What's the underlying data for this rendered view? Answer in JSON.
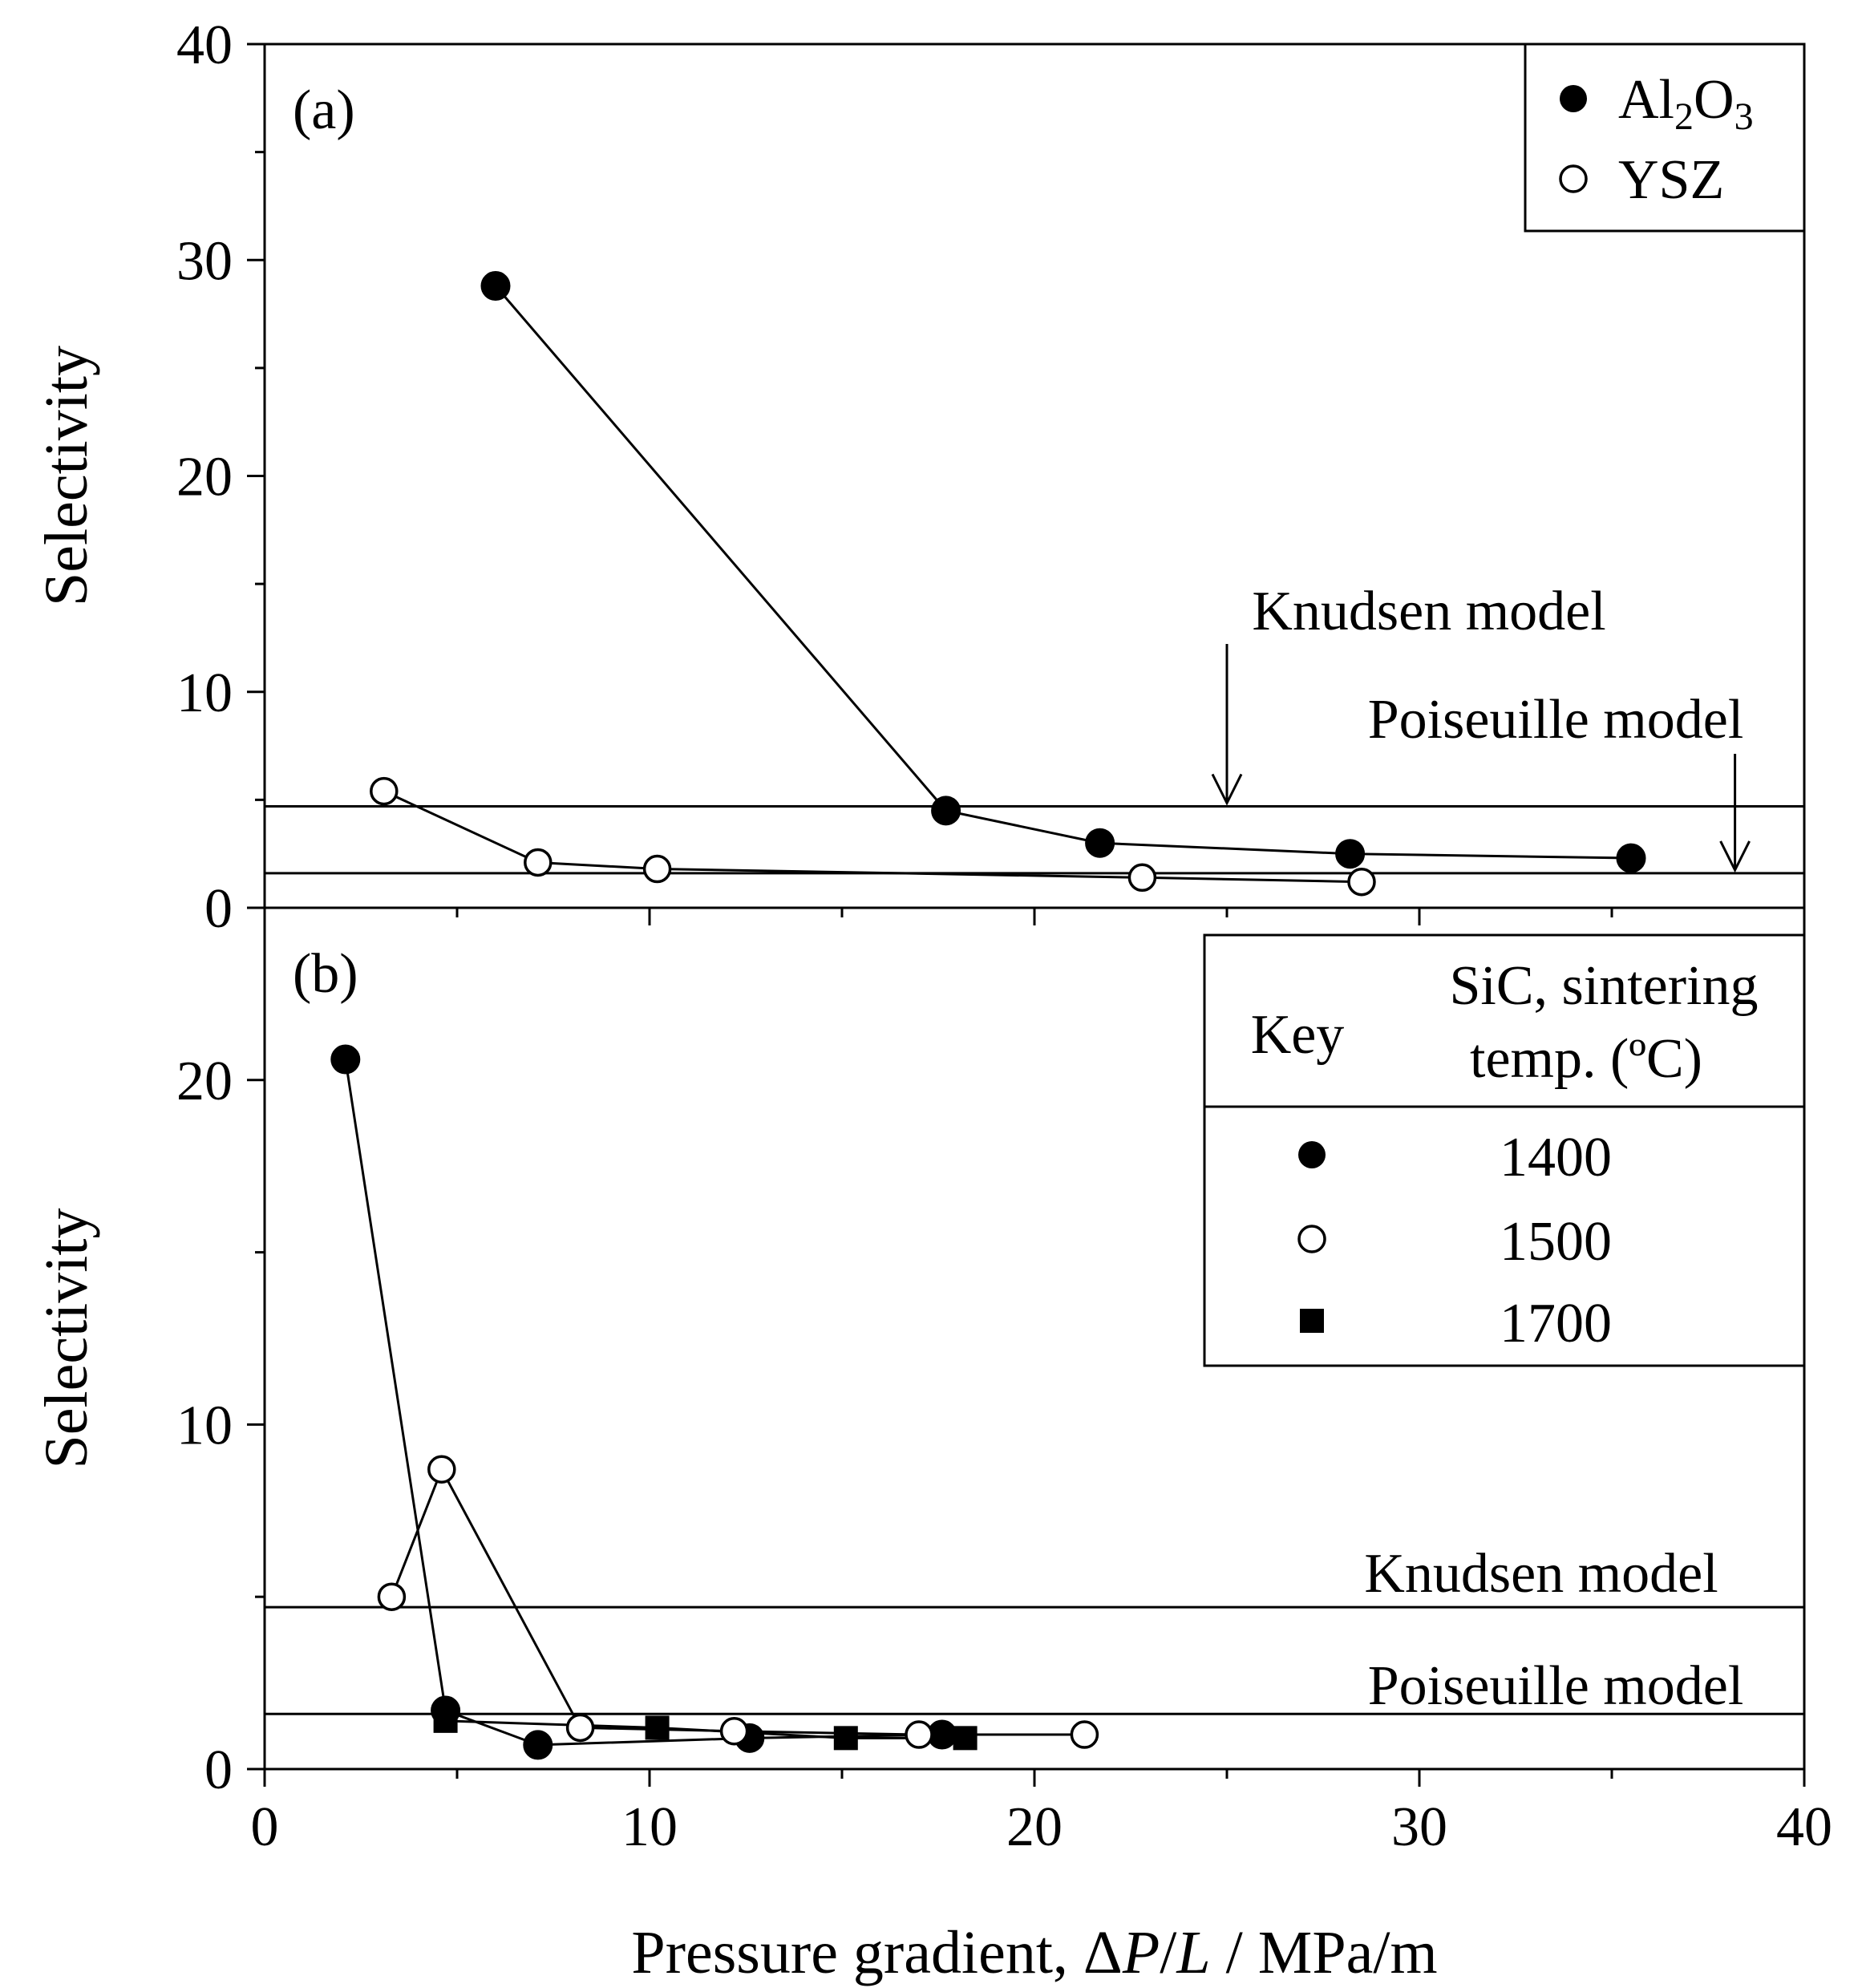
{
  "chart_data": [
    {
      "panel": "(a)",
      "type": "line",
      "xlabel": "Pressure gradient, ΔP/L / MPa/m",
      "ylabel": "Selectivity",
      "xlim": [
        0,
        40
      ],
      "ylim": [
        0,
        40
      ],
      "x_ticks": [
        0,
        10,
        20,
        30,
        40
      ],
      "y_ticks": [
        0,
        10,
        20,
        30,
        40
      ],
      "legend": {
        "position": "top-right",
        "entries": [
          "Al2O3",
          "YSZ"
        ]
      },
      "series": [
        {
          "name": "Al2O3",
          "marker": "filled-circle",
          "points": [
            [
              6.0,
              28.8
            ],
            [
              17.7,
              4.5
            ],
            [
              21.7,
              3.0
            ],
            [
              28.2,
              2.5
            ],
            [
              35.5,
              2.3
            ]
          ]
        },
        {
          "name": "YSZ",
          "marker": "open-circle",
          "points": [
            [
              3.1,
              5.4
            ],
            [
              7.1,
              2.1
            ],
            [
              10.2,
              1.8
            ],
            [
              22.8,
              1.4
            ],
            [
              28.5,
              1.2
            ]
          ]
        }
      ],
      "reference_lines": [
        {
          "label": "Knudsen model",
          "y": 4.7
        },
        {
          "label": "Poiseuille model",
          "y": 1.6
        }
      ]
    },
    {
      "panel": "(b)",
      "type": "line",
      "xlabel": "Pressure gradient, ΔP/L / MPa/m",
      "ylabel": "Selectivity",
      "xlim": [
        0,
        40
      ],
      "ylim": [
        0,
        25
      ],
      "x_ticks": [
        0,
        10,
        20,
        30,
        40
      ],
      "y_ticks": [
        0,
        10,
        20
      ],
      "legend": {
        "position": "top-right",
        "key_header": "Key",
        "header_line1": "SiC, sintering",
        "header_line2": "temp. (ºC)",
        "entries": [
          "1400",
          "1500",
          "1700"
        ]
      },
      "series": [
        {
          "name": "1400",
          "marker": "filled-circle",
          "points": [
            [
              2.1,
              20.6
            ],
            [
              4.7,
              1.7
            ],
            [
              7.1,
              0.7
            ],
            [
              12.6,
              0.9
            ],
            [
              17.6,
              1.0
            ]
          ]
        },
        {
          "name": "1500",
          "marker": "open-circle",
          "points": [
            [
              3.3,
              5.0
            ],
            [
              4.6,
              8.7
            ],
            [
              8.2,
              1.2
            ],
            [
              12.2,
              1.1
            ],
            [
              17.0,
              1.0
            ],
            [
              21.3,
              1.0
            ]
          ]
        },
        {
          "name": "1700",
          "marker": "filled-square",
          "points": [
            [
              4.7,
              1.4
            ],
            [
              10.2,
              1.2
            ],
            [
              15.1,
              0.9
            ],
            [
              18.2,
              0.9
            ]
          ]
        }
      ],
      "reference_lines": [
        {
          "label": "Knudsen model",
          "y": 4.7
        },
        {
          "label": "Poiseuille model",
          "y": 1.6
        }
      ]
    }
  ],
  "legend_a": {
    "al2o3": {
      "base": "Al",
      "sub1": "2",
      "mid": "O",
      "sub2": "3"
    },
    "ysz": "YSZ"
  },
  "axis_label_parts": {
    "prefix": "Pressure gradient, Δ",
    "p": "P",
    "slash": "/",
    "l": "L",
    "suffix": " / MPa/m"
  }
}
